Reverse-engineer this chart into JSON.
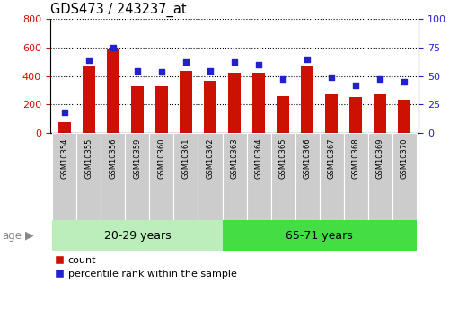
{
  "title": "GDS473 / 243237_at",
  "samples": [
    "GSM10354",
    "GSM10355",
    "GSM10356",
    "GSM10359",
    "GSM10360",
    "GSM10361",
    "GSM10362",
    "GSM10363",
    "GSM10364",
    "GSM10365",
    "GSM10366",
    "GSM10367",
    "GSM10368",
    "GSM10369",
    "GSM10370"
  ],
  "counts": [
    75,
    465,
    590,
    325,
    330,
    435,
    365,
    425,
    425,
    258,
    468,
    272,
    255,
    270,
    235
  ],
  "percentiles": [
    18.5,
    63.5,
    75.0,
    54.5,
    53.5,
    62.5,
    54.5,
    62.0,
    60.0,
    47.0,
    64.5,
    48.5,
    42.0,
    47.0,
    45.0
  ],
  "group1_label": "20-29 years",
  "group2_label": "65-71 years",
  "group1_count": 7,
  "group2_count": 8,
  "left_ylim": [
    0,
    800
  ],
  "right_ylim": [
    0,
    100
  ],
  "left_yticks": [
    0,
    200,
    400,
    600,
    800
  ],
  "right_yticks": [
    0,
    25,
    50,
    75,
    100
  ],
  "bar_color": "#cc1100",
  "dot_color": "#2222cc",
  "group1_bg": "#bbeebb",
  "group2_bg": "#44dd44",
  "xtick_bg": "#cccccc",
  "age_label": "age",
  "legend_count": "count",
  "legend_percentile": "percentile rank within the sample",
  "bar_width": 0.5,
  "tick_label_color_left": "#cc1100",
  "tick_label_color_right": "#2222cc"
}
